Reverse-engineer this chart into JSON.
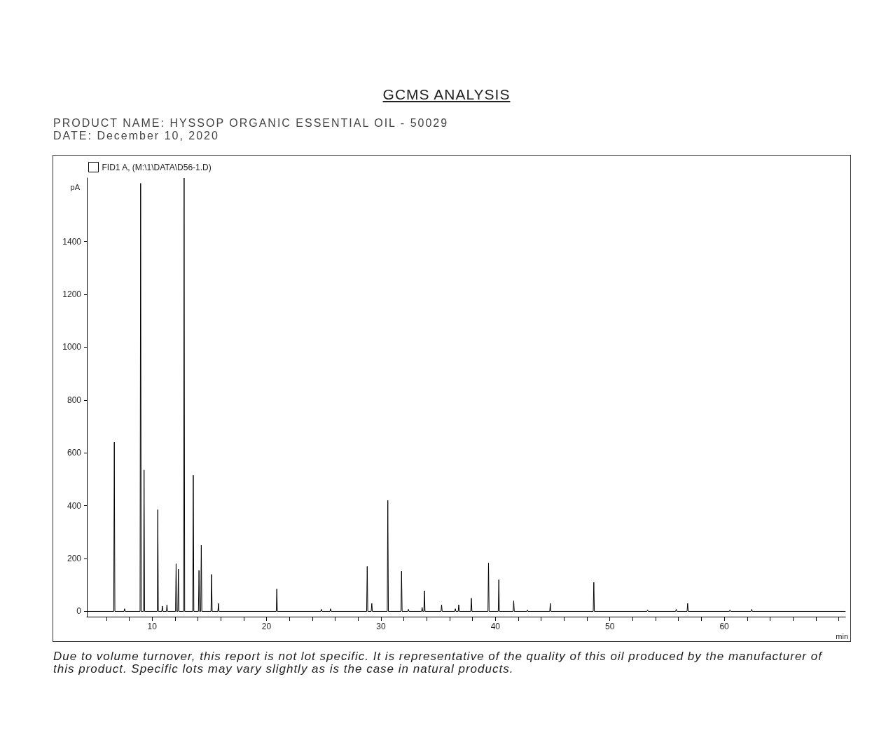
{
  "chart_data": {
    "type": "line",
    "title": "GCMS ANALYSIS",
    "subtitle": "PRODUCT NAME: HYSSOP ORGANIC ESSENTIAL OIL - 50029\nDATE: December 10, 2020",
    "xlabel": "min",
    "ylabel": "pA",
    "annotations": [
      "Due to volume turnover, this report is not lot specific. It is representative of the quality of this oil produced by the manufacturer of this product. Specific lots may vary slightly as is the case in natural products."
    ],
    "x": [
      4.3,
      6.65,
      6.7,
      6.75,
      7.55,
      7.6,
      7.65,
      8.95,
      9.0,
      9.05,
      9.25,
      9.3,
      9.35,
      10.45,
      10.5,
      10.55,
      10.85,
      10.9,
      10.95,
      11.25,
      11.3,
      11.35,
      12.05,
      12.1,
      12.15,
      12.25,
      12.3,
      12.35,
      12.75,
      12.8,
      12.85,
      13.55,
      13.6,
      13.65,
      14.05,
      14.1,
      14.15,
      14.25,
      14.3,
      14.35,
      15.15,
      15.2,
      15.25,
      15.75,
      15.8,
      15.85,
      20.85,
      20.9,
      20.95,
      24.75,
      24.8,
      24.85,
      25.55,
      25.6,
      25.65,
      28.75,
      28.8,
      28.85,
      29.15,
      29.2,
      29.25,
      30.55,
      30.6,
      30.65,
      31.75,
      31.8,
      31.85,
      32.35,
      32.4,
      32.45,
      33.55,
      33.6,
      33.65,
      33.75,
      33.8,
      33.85,
      35.25,
      35.3,
      35.35,
      36.45,
      36.5,
      36.55,
      36.75,
      36.8,
      36.85,
      37.85,
      37.9,
      37.95,
      39.35,
      39.4,
      39.45,
      40.25,
      40.3,
      40.35,
      41.55,
      41.6,
      41.65,
      42.75,
      42.8,
      42.85,
      44.75,
      44.8,
      44.85,
      48.55,
      48.6,
      48.65,
      53.25,
      53.3,
      53.35,
      55.75,
      55.8,
      55.85,
      56.75,
      56.8,
      56.85,
      60.45,
      60.5,
      60.55,
      62.35,
      62.4,
      62.45,
      70.6
    ],
    "series": [
      {
        "name": "FID1 A, (M:\\1\\DATA\\D56-1.D)",
        "color": "#000000",
        "values": [
          0,
          0,
          640,
          0,
          0,
          10,
          0,
          0,
          1620,
          0,
          0,
          535,
          0,
          0,
          385,
          0,
          0,
          20,
          0,
          0,
          25,
          0,
          0,
          180,
          0,
          0,
          160,
          0,
          0,
          1640,
          0,
          0,
          515,
          0,
          0,
          155,
          0,
          0,
          250,
          0,
          0,
          140,
          0,
          0,
          30,
          0,
          0,
          85,
          0,
          0,
          8,
          0,
          0,
          10,
          0,
          0,
          170,
          0,
          0,
          30,
          0,
          0,
          420,
          0,
          0,
          152,
          0,
          0,
          8,
          0,
          0,
          15,
          0,
          0,
          78,
          0,
          0,
          25,
          0,
          0,
          10,
          0,
          0,
          25,
          0,
          0,
          50,
          0,
          0,
          183,
          0,
          0,
          120,
          0,
          0,
          40,
          0,
          0,
          5,
          0,
          0,
          30,
          0,
          0,
          110,
          0,
          0,
          5,
          0,
          0,
          8,
          0,
          0,
          30,
          0,
          0,
          5,
          0,
          0,
          8,
          0,
          0
        ]
      }
    ],
    "xlim": [
      4.3,
      70.6
    ],
    "xticks": [
      {
        "value": 6,
        "label": null
      },
      {
        "value": 8,
        "label": null
      },
      10,
      {
        "value": 12,
        "label": null
      },
      {
        "value": 14,
        "label": null
      },
      {
        "value": 16,
        "label": null
      },
      {
        "value": 18,
        "label": null
      },
      20,
      {
        "value": 22,
        "label": null
      },
      {
        "value": 24,
        "label": null
      },
      {
        "value": 26,
        "label": null
      },
      {
        "value": 28,
        "label": null
      },
      30,
      {
        "value": 32,
        "label": null
      },
      {
        "value": 34,
        "label": null
      },
      {
        "value": 36,
        "label": null
      },
      {
        "value": 38,
        "label": null
      },
      40,
      {
        "value": 42,
        "label": null
      },
      {
        "value": 44,
        "label": null
      },
      {
        "value": 46,
        "label": null
      },
      {
        "value": 48,
        "label": null
      },
      50,
      {
        "value": 52,
        "label": null
      },
      {
        "value": 54,
        "label": null
      },
      {
        "value": 56,
        "label": null
      },
      {
        "value": 58,
        "label": null
      },
      60,
      {
        "value": 62,
        "label": null
      },
      {
        "value": 64,
        "label": null
      },
      {
        "value": 66,
        "label": null
      },
      {
        "value": 68,
        "label": null
      },
      {
        "value": 70,
        "label": null
      }
    ],
    "ylim": [
      -20,
      1640
    ],
    "yticks": [
      0,
      200,
      400,
      600,
      800,
      1000,
      1200,
      1400
    ],
    "grid": false,
    "legend": "top left",
    "marker": "none",
    "line_style": "solid"
  }
}
